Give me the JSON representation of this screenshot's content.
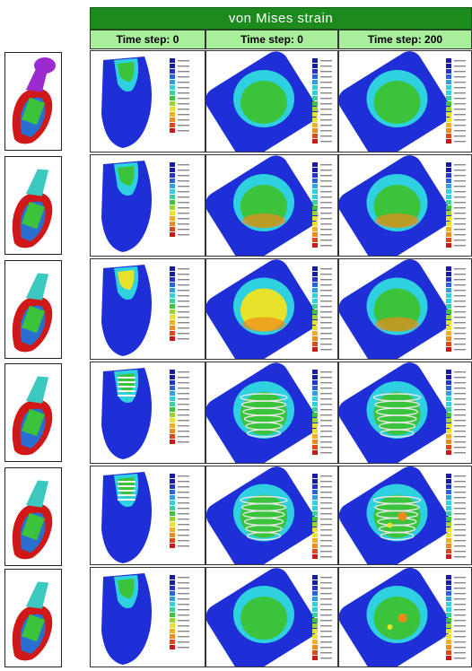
{
  "figure": {
    "title": "von Mises strain",
    "columns": [
      "Time step: 0",
      "Time step: 0",
      "Time step: 200"
    ],
    "rows": 6,
    "colors": {
      "header_green": "#1c8a1c",
      "subheader_green": "#a9ee9b",
      "implant_red": "#d01818",
      "bone_blue": "#2a6fd0",
      "strain_blue": "#1f2fd8",
      "strain_cyan": "#2fd0e0",
      "strain_green": "#3cc33c",
      "strain_yellow": "#e8e22a",
      "strain_orange": "#f08a1a",
      "abutment_purple": "#9b2bd0",
      "abutment_teal": "#3ac8c0"
    }
  }
}
